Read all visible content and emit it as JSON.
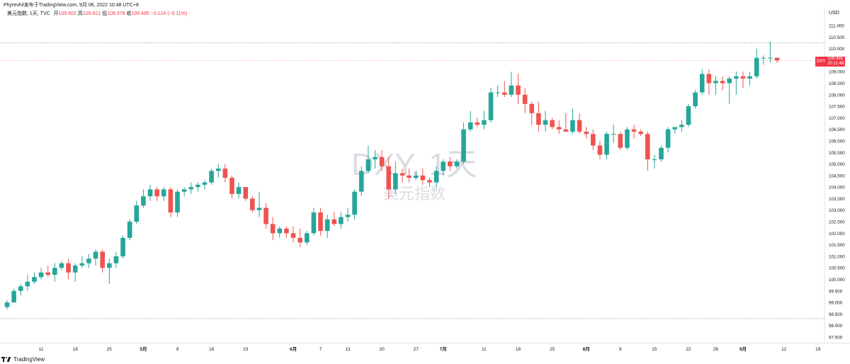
{
  "header": {
    "publisher_line": "Phyrevhil发布于TradingView.com, 9月 06, 2022 10:48 UTC+8",
    "symbol_line": "美元指数, 1天, TVC",
    "open_label": "开",
    "open_value": "109.602",
    "high_label": "高",
    "high_value": "109.621",
    "low_label": "低",
    "low_value": "109.378",
    "close_label": "收",
    "close_value": "109.485",
    "change": "−0.124 (−0.11%)",
    "currency": "USD"
  },
  "watermark": {
    "title": "DXY, 1天",
    "subtitle": "美元指数"
  },
  "price_tag": {
    "symbol": "DXY",
    "price": "109.485",
    "countdown": "20:11:48"
  },
  "footer": {
    "brand": "TradingView"
  },
  "colors": {
    "up": "#26a69a",
    "down": "#ef5350",
    "axis_text": "#131722",
    "dotted_line": "#9598a1",
    "last_price_line": "#f23645",
    "watermark": "#dadce2"
  },
  "chart_data": {
    "type": "candlestick",
    "title": "DXY, 1天",
    "subtitle": "美元指数",
    "y_unit": "USD",
    "ylim": [
      97.3,
      111.6
    ],
    "y_ticks": [
      "97.500",
      "98.000",
      "98.500",
      "99.000",
      "99.500",
      "100.000",
      "100.500",
      "101.000",
      "101.500",
      "102.000",
      "102.500",
      "103.000",
      "103.500",
      "104.000",
      "104.500",
      "105.000",
      "105.500",
      "106.000",
      "106.500",
      "107.000",
      "107.500",
      "108.000",
      "108.500",
      "109.000",
      "109.500",
      "110.000",
      "110.500",
      "111.000"
    ],
    "x_ticks": [
      {
        "label": "11",
        "idx": 5
      },
      {
        "label": "18",
        "idx": 10
      },
      {
        "label": "25",
        "idx": 15
      },
      {
        "label": "5月",
        "idx": 20
      },
      {
        "label": "9",
        "idx": 25
      },
      {
        "label": "16",
        "idx": 30
      },
      {
        "label": "23",
        "idx": 35
      },
      {
        "label": "6月",
        "idx": 42
      },
      {
        "label": "7",
        "idx": 46
      },
      {
        "label": "13",
        "idx": 50
      },
      {
        "label": "20",
        "idx": 55
      },
      {
        "label": "27",
        "idx": 60
      },
      {
        "label": "7月",
        "idx": 64
      },
      {
        "label": "11",
        "idx": 70
      },
      {
        "label": "18",
        "idx": 75
      },
      {
        "label": "25",
        "idx": 80
      },
      {
        "label": "8月",
        "idx": 85
      },
      {
        "label": "8",
        "idx": 90
      },
      {
        "label": "15",
        "idx": 95
      },
      {
        "label": "22",
        "idx": 100
      },
      {
        "label": "26",
        "idx": 104
      },
      {
        "label": "9月",
        "idx": 108
      },
      {
        "label": "12",
        "idx": 114
      },
      {
        "label": "19",
        "idx": 119
      }
    ],
    "dotted_levels": [
      110.25,
      98.3
    ],
    "last_price": 109.485,
    "candles": [
      {
        "o": 98.8,
        "h": 99.1,
        "l": 98.7,
        "c": 99.0
      },
      {
        "o": 99.0,
        "h": 99.6,
        "l": 99.0,
        "c": 99.5
      },
      {
        "o": 99.5,
        "h": 99.8,
        "l": 99.3,
        "c": 99.7
      },
      {
        "o": 99.7,
        "h": 100.2,
        "l": 99.5,
        "c": 99.9
      },
      {
        "o": 99.9,
        "h": 100.3,
        "l": 99.8,
        "c": 100.1
      },
      {
        "o": 100.1,
        "h": 100.5,
        "l": 100.0,
        "c": 100.3
      },
      {
        "o": 100.3,
        "h": 100.6,
        "l": 100.1,
        "c": 100.2
      },
      {
        "o": 100.2,
        "h": 100.7,
        "l": 99.9,
        "c": 100.5
      },
      {
        "o": 100.5,
        "h": 100.8,
        "l": 100.4,
        "c": 100.7
      },
      {
        "o": 100.7,
        "h": 100.9,
        "l": 100.0,
        "c": 100.3
      },
      {
        "o": 100.3,
        "h": 100.7,
        "l": 99.9,
        "c": 100.6
      },
      {
        "o": 100.6,
        "h": 101.0,
        "l": 100.5,
        "c": 100.7
      },
      {
        "o": 100.7,
        "h": 101.1,
        "l": 100.5,
        "c": 100.9
      },
      {
        "o": 100.9,
        "h": 101.3,
        "l": 100.6,
        "c": 101.2
      },
      {
        "o": 101.2,
        "h": 101.3,
        "l": 100.3,
        "c": 100.5
      },
      {
        "o": 100.5,
        "h": 100.9,
        "l": 99.8,
        "c": 100.7
      },
      {
        "o": 100.7,
        "h": 101.2,
        "l": 100.5,
        "c": 101.0
      },
      {
        "o": 101.0,
        "h": 101.9,
        "l": 100.9,
        "c": 101.8
      },
      {
        "o": 101.8,
        "h": 102.6,
        "l": 101.7,
        "c": 102.5
      },
      {
        "o": 102.5,
        "h": 103.4,
        "l": 102.4,
        "c": 103.2
      },
      {
        "o": 103.2,
        "h": 103.9,
        "l": 103.1,
        "c": 103.6
      },
      {
        "o": 103.6,
        "h": 104.1,
        "l": 103.4,
        "c": 103.9
      },
      {
        "o": 103.9,
        "h": 104.0,
        "l": 103.4,
        "c": 103.6
      },
      {
        "o": 103.6,
        "h": 104.0,
        "l": 103.4,
        "c": 103.9
      },
      {
        "o": 103.9,
        "h": 104.0,
        "l": 102.7,
        "c": 102.9
      },
      {
        "o": 102.9,
        "h": 103.9,
        "l": 102.7,
        "c": 103.8
      },
      {
        "o": 103.8,
        "h": 104.0,
        "l": 103.6,
        "c": 103.9
      },
      {
        "o": 103.9,
        "h": 104.2,
        "l": 103.7,
        "c": 104.0
      },
      {
        "o": 104.0,
        "h": 104.2,
        "l": 103.8,
        "c": 104.1
      },
      {
        "o": 104.1,
        "h": 104.3,
        "l": 103.9,
        "c": 104.2
      },
      {
        "o": 104.2,
        "h": 104.8,
        "l": 104.1,
        "c": 104.7
      },
      {
        "o": 104.7,
        "h": 105.0,
        "l": 104.4,
        "c": 104.8
      },
      {
        "o": 104.8,
        "h": 105.0,
        "l": 104.2,
        "c": 104.4
      },
      {
        "o": 104.4,
        "h": 104.5,
        "l": 103.5,
        "c": 103.7
      },
      {
        "o": 103.7,
        "h": 104.2,
        "l": 103.5,
        "c": 104.0
      },
      {
        "o": 104.0,
        "h": 104.0,
        "l": 103.4,
        "c": 103.5
      },
      {
        "o": 103.5,
        "h": 103.6,
        "l": 102.9,
        "c": 103.0
      },
      {
        "o": 103.0,
        "h": 103.8,
        "l": 102.7,
        "c": 103.1
      },
      {
        "o": 103.1,
        "h": 103.3,
        "l": 102.2,
        "c": 102.4
      },
      {
        "o": 102.4,
        "h": 102.7,
        "l": 101.7,
        "c": 102.0
      },
      {
        "o": 102.0,
        "h": 102.3,
        "l": 101.8,
        "c": 102.2
      },
      {
        "o": 102.2,
        "h": 102.3,
        "l": 101.8,
        "c": 102.0
      },
      {
        "o": 102.0,
        "h": 102.3,
        "l": 101.6,
        "c": 101.8
      },
      {
        "o": 101.8,
        "h": 102.2,
        "l": 101.4,
        "c": 101.6
      },
      {
        "o": 101.6,
        "h": 102.1,
        "l": 101.5,
        "c": 102.0
      },
      {
        "o": 102.0,
        "h": 103.1,
        "l": 101.9,
        "c": 102.9
      },
      {
        "o": 102.9,
        "h": 103.1,
        "l": 101.9,
        "c": 102.1
      },
      {
        "o": 102.1,
        "h": 102.8,
        "l": 101.8,
        "c": 102.6
      },
      {
        "o": 102.6,
        "h": 102.9,
        "l": 102.3,
        "c": 102.4
      },
      {
        "o": 102.4,
        "h": 102.9,
        "l": 102.2,
        "c": 102.7
      },
      {
        "o": 102.7,
        "h": 103.1,
        "l": 102.5,
        "c": 102.8
      },
      {
        "o": 102.8,
        "h": 103.9,
        "l": 102.6,
        "c": 103.8
      },
      {
        "o": 103.8,
        "h": 104.9,
        "l": 103.6,
        "c": 104.7
      },
      {
        "o": 104.7,
        "h": 105.8,
        "l": 104.6,
        "c": 105.2
      },
      {
        "o": 105.2,
        "h": 105.6,
        "l": 104.8,
        "c": 105.3
      },
      {
        "o": 105.3,
        "h": 105.6,
        "l": 104.7,
        "c": 104.9
      },
      {
        "o": 104.9,
        "h": 105.3,
        "l": 103.5,
        "c": 103.9
      },
      {
        "o": 103.9,
        "h": 105.1,
        "l": 103.7,
        "c": 104.6
      },
      {
        "o": 104.6,
        "h": 104.8,
        "l": 104.2,
        "c": 104.5
      },
      {
        "o": 104.5,
        "h": 104.8,
        "l": 104.2,
        "c": 104.4
      },
      {
        "o": 104.4,
        "h": 104.7,
        "l": 104.3,
        "c": 104.5
      },
      {
        "o": 104.5,
        "h": 104.8,
        "l": 104.1,
        "c": 104.3
      },
      {
        "o": 104.3,
        "h": 104.4,
        "l": 104.0,
        "c": 104.2
      },
      {
        "o": 104.2,
        "h": 104.9,
        "l": 104.0,
        "c": 104.7
      },
      {
        "o": 104.7,
        "h": 105.2,
        "l": 104.5,
        "c": 105.1
      },
      {
        "o": 105.1,
        "h": 105.3,
        "l": 104.7,
        "c": 104.9
      },
      {
        "o": 104.9,
        "h": 105.2,
        "l": 104.8,
        "c": 105.1
      },
      {
        "o": 105.1,
        "h": 106.8,
        "l": 105.0,
        "c": 106.5
      },
      {
        "o": 106.5,
        "h": 107.3,
        "l": 106.4,
        "c": 106.8
      },
      {
        "o": 106.8,
        "h": 107.0,
        "l": 106.6,
        "c": 106.7
      },
      {
        "o": 106.7,
        "h": 107.3,
        "l": 106.5,
        "c": 106.9
      },
      {
        "o": 106.9,
        "h": 108.3,
        "l": 106.8,
        "c": 108.1
      },
      {
        "o": 108.1,
        "h": 108.4,
        "l": 107.9,
        "c": 108.1
      },
      {
        "o": 108.1,
        "h": 108.6,
        "l": 107.9,
        "c": 108.0
      },
      {
        "o": 108.0,
        "h": 109.0,
        "l": 107.9,
        "c": 108.4
      },
      {
        "o": 108.4,
        "h": 108.9,
        "l": 107.6,
        "c": 108.0
      },
      {
        "o": 108.0,
        "h": 108.3,
        "l": 107.2,
        "c": 107.6
      },
      {
        "o": 107.6,
        "h": 107.7,
        "l": 106.7,
        "c": 107.2
      },
      {
        "o": 107.2,
        "h": 107.7,
        "l": 106.4,
        "c": 106.7
      },
      {
        "o": 106.7,
        "h": 107.3,
        "l": 106.4,
        "c": 106.9
      },
      {
        "o": 106.9,
        "h": 107.0,
        "l": 106.5,
        "c": 106.6
      },
      {
        "o": 106.6,
        "h": 106.9,
        "l": 106.3,
        "c": 106.5
      },
      {
        "o": 106.5,
        "h": 107.2,
        "l": 106.4,
        "c": 106.4
      },
      {
        "o": 106.4,
        "h": 107.4,
        "l": 106.3,
        "c": 106.9
      },
      {
        "o": 106.9,
        "h": 107.2,
        "l": 106.3,
        "c": 106.4
      },
      {
        "o": 106.4,
        "h": 106.6,
        "l": 106.1,
        "c": 106.3
      },
      {
        "o": 106.3,
        "h": 106.5,
        "l": 105.6,
        "c": 105.8
      },
      {
        "o": 105.8,
        "h": 106.0,
        "l": 105.2,
        "c": 105.4
      },
      {
        "o": 105.4,
        "h": 106.4,
        "l": 105.2,
        "c": 106.3
      },
      {
        "o": 106.3,
        "h": 106.7,
        "l": 105.9,
        "c": 106.3
      },
      {
        "o": 106.3,
        "h": 106.4,
        "l": 105.6,
        "c": 105.7
      },
      {
        "o": 105.7,
        "h": 106.6,
        "l": 105.6,
        "c": 106.5
      },
      {
        "o": 106.5,
        "h": 106.7,
        "l": 106.1,
        "c": 106.4
      },
      {
        "o": 106.4,
        "h": 106.5,
        "l": 106.2,
        "c": 106.3
      },
      {
        "o": 106.3,
        "h": 106.4,
        "l": 104.7,
        "c": 105.2
      },
      {
        "o": 105.2,
        "h": 105.4,
        "l": 104.8,
        "c": 105.2
      },
      {
        "o": 105.2,
        "h": 105.8,
        "l": 105.1,
        "c": 105.7
      },
      {
        "o": 105.7,
        "h": 106.6,
        "l": 105.5,
        "c": 106.5
      },
      {
        "o": 106.5,
        "h": 106.6,
        "l": 106.3,
        "c": 106.6
      },
      {
        "o": 106.6,
        "h": 106.9,
        "l": 106.4,
        "c": 106.7
      },
      {
        "o": 106.7,
        "h": 107.6,
        "l": 106.6,
        "c": 107.5
      },
      {
        "o": 107.5,
        "h": 108.2,
        "l": 107.4,
        "c": 108.1
      },
      {
        "o": 108.1,
        "h": 109.1,
        "l": 108.0,
        "c": 108.9
      },
      {
        "o": 108.9,
        "h": 109.1,
        "l": 108.0,
        "c": 108.5
      },
      {
        "o": 108.5,
        "h": 108.8,
        "l": 108.0,
        "c": 108.6
      },
      {
        "o": 108.6,
        "h": 108.8,
        "l": 108.2,
        "c": 108.5
      },
      {
        "o": 108.5,
        "h": 108.8,
        "l": 107.6,
        "c": 108.7
      },
      {
        "o": 108.7,
        "h": 109.0,
        "l": 108.0,
        "c": 108.8
      },
      {
        "o": 108.8,
        "h": 109.0,
        "l": 108.3,
        "c": 108.7
      },
      {
        "o": 108.7,
        "h": 109.0,
        "l": 108.4,
        "c": 108.8
      },
      {
        "o": 108.8,
        "h": 110.0,
        "l": 108.7,
        "c": 109.6
      },
      {
        "o": 109.6,
        "h": 109.7,
        "l": 109.3,
        "c": 109.6
      },
      {
        "o": 109.6,
        "h": 110.3,
        "l": 109.4,
        "c": 109.6
      },
      {
        "o": 109.602,
        "h": 109.621,
        "l": 109.378,
        "c": 109.485
      }
    ]
  }
}
